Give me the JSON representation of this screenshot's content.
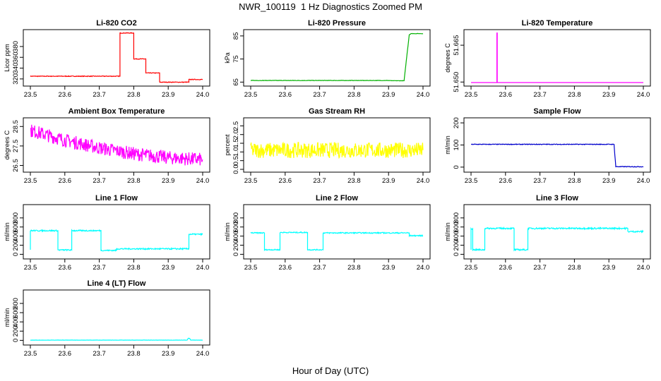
{
  "figure": {
    "title": "NWR_100119  1 Hz Diagnostics Zoomed PM",
    "xlabel": "Hour of Day (UTC)"
  },
  "chart_data": [
    {
      "type": "line",
      "title": "Li-820 CO2",
      "ylabel": "Licor ppm",
      "xlim": [
        23.5,
        24.0
      ],
      "ylim": [
        312,
        406
      ],
      "yticks": [
        "320",
        "340",
        "360",
        "380"
      ],
      "xticks": [
        "23.5",
        "23.6",
        "23.7",
        "23.8",
        "23.9",
        "24.0"
      ],
      "color": "#ff0000",
      "noise": 0.6,
      "series": [
        {
          "name": "",
          "x": [
            23.5,
            23.76,
            23.76,
            23.8,
            23.8,
            23.835,
            23.835,
            23.875,
            23.875,
            23.96,
            23.96,
            24.0
          ],
          "y": [
            325,
            325,
            405,
            405,
            357,
            357,
            331,
            331,
            314,
            314,
            319,
            319
          ]
        }
      ]
    },
    {
      "type": "line",
      "title": "Li-820 Pressure",
      "ylabel": "kPa",
      "xlim": [
        23.5,
        24.0
      ],
      "ylim": [
        64.5,
        86.5
      ],
      "yticks": [
        "65",
        "75",
        "85"
      ],
      "xticks": [
        "23.5",
        "23.6",
        "23.7",
        "23.8",
        "23.9",
        "24.0"
      ],
      "color": "#00b000",
      "noise": 0.08,
      "series": [
        {
          "name": "",
          "x": [
            23.5,
            23.9,
            23.91,
            23.945,
            23.96,
            23.965,
            24.0
          ],
          "y": [
            65.7,
            65.7,
            65.6,
            65.6,
            85.5,
            86.0,
            86.0
          ]
        }
      ]
    },
    {
      "type": "line",
      "title": "Li-820 Temperature",
      "ylabel": "degrees C",
      "xlim": [
        23.5,
        24.0
      ],
      "ylim": [
        51.6495,
        51.6702
      ],
      "yticks": [
        "51.650",
        "51.665"
      ],
      "xticks": [
        "23.5",
        "23.6",
        "23.7",
        "23.8",
        "23.9",
        "24.0"
      ],
      "color": "#ff00ff",
      "noise": 0,
      "series": [
        {
          "name": "",
          "x": [
            23.5,
            23.575,
            23.575,
            23.576,
            23.576,
            24.0
          ],
          "y": [
            51.6498,
            51.6498,
            51.67,
            51.67,
            51.6498,
            51.6498
          ]
        }
      ]
    },
    {
      "type": "line",
      "title": "Ambient Box Temperature",
      "ylabel": "degrees C",
      "xlim": [
        23.5,
        24.0
      ],
      "ylim": [
        26.3,
        28.8
      ],
      "yticks": [
        "26.5",
        "27.5",
        "28.5"
      ],
      "xticks": [
        "23.5",
        "23.6",
        "23.7",
        "23.8",
        "23.9",
        "24.0"
      ],
      "color": "#ff00ff",
      "noise": 0.35,
      "series": [
        {
          "name": "",
          "x": [
            23.5,
            23.6,
            23.7,
            23.8,
            23.9,
            24.0
          ],
          "y": [
            28.3,
            27.8,
            27.4,
            27.1,
            26.9,
            26.8
          ]
        }
      ]
    },
    {
      "type": "line",
      "title": "Gas Stream RH",
      "ylabel": "percent",
      "xlim": [
        23.5,
        24.0
      ],
      "ylim": [
        0,
        2.8
      ],
      "yticks": [
        "0.0",
        "0.5",
        "1.0",
        "1.5",
        "2.0",
        "2.5"
      ],
      "xticks": [
        "23.5",
        "23.6",
        "23.7",
        "23.8",
        "23.9",
        "24.0"
      ],
      "color": "#ffff00",
      "noise": 0.45,
      "series": [
        {
          "name": "",
          "x": [
            23.5,
            24.0
          ],
          "y": [
            1.1,
            1.1
          ]
        }
      ]
    },
    {
      "type": "line",
      "title": "Sample Flow",
      "ylabel": "ml/min",
      "xlim": [
        23.5,
        24.0
      ],
      "ylim": [
        -10,
        210
      ],
      "yticks": [
        "0",
        "100",
        "200"
      ],
      "xticks": [
        "23.5",
        "23.6",
        "23.7",
        "23.8",
        "23.9",
        "24.0"
      ],
      "color": "#0000cc",
      "noise": 1.5,
      "series": [
        {
          "name": "",
          "x": [
            23.5,
            23.915,
            23.92,
            24.0
          ],
          "y": [
            103,
            103,
            2,
            2
          ]
        }
      ]
    },
    {
      "type": "line",
      "title": "Line 1 Flow",
      "ylabel": "ml/min",
      "xlim": [
        23.5,
        24.0
      ],
      "ylim": [
        -40,
        1030
      ],
      "yticks": [
        "0",
        "200",
        "400",
        "600",
        "800"
      ],
      "xticks": [
        "23.5",
        "23.6",
        "23.7",
        "23.8",
        "23.9",
        "24.0"
      ],
      "color": "#00ffff",
      "noise": 14,
      "series": [
        {
          "name": "",
          "x": [
            23.5,
            23.5,
            23.58,
            23.58,
            23.62,
            23.62,
            23.705,
            23.705,
            23.75,
            23.75,
            23.96,
            23.96,
            24.0
          ],
          "y": [
            100,
            520,
            520,
            95,
            95,
            520,
            520,
            85,
            85,
            120,
            120,
            440,
            440
          ]
        }
      ]
    },
    {
      "type": "line",
      "title": "Line 2 Flow",
      "ylabel": "ml/min",
      "xlim": [
        23.5,
        24.0
      ],
      "ylim": [
        -40,
        1030
      ],
      "yticks": [
        "0",
        "200",
        "400",
        "600",
        "800"
      ],
      "xticks": [
        "23.5",
        "23.6",
        "23.7",
        "23.8",
        "23.9",
        "24.0"
      ],
      "color": "#00ffff",
      "noise": 12,
      "series": [
        {
          "name": "",
          "x": [
            23.5,
            23.54,
            23.54,
            23.585,
            23.585,
            23.665,
            23.665,
            23.71,
            23.71,
            23.96,
            23.96,
            24.0
          ],
          "y": [
            470,
            470,
            100,
            100,
            480,
            480,
            100,
            100,
            470,
            470,
            410,
            410
          ]
        }
      ]
    },
    {
      "type": "line",
      "title": "Line 3 Flow",
      "ylabel": "ml/min",
      "xlim": [
        23.5,
        24.0
      ],
      "ylim": [
        -40,
        1030
      ],
      "yticks": [
        "0",
        "200",
        "400",
        "600",
        "800"
      ],
      "xticks": [
        "23.5",
        "23.6",
        "23.7",
        "23.8",
        "23.9",
        "24.0"
      ],
      "color": "#00ffff",
      "noise": 16,
      "series": [
        {
          "name": "",
          "x": [
            23.5,
            23.5,
            23.505,
            23.505,
            23.54,
            23.54,
            23.625,
            23.625,
            23.665,
            23.665,
            23.955,
            23.955,
            24.0
          ],
          "y": [
            100,
            560,
            560,
            100,
            100,
            570,
            570,
            100,
            100,
            570,
            570,
            500,
            500
          ]
        }
      ]
    },
    {
      "type": "line",
      "title": "Line 4 (LT) Flow",
      "ylabel": "ml/min",
      "xlim": [
        23.5,
        24.0
      ],
      "ylim": [
        -40,
        1030
      ],
      "yticks": [
        "0",
        "200",
        "400",
        "600",
        "800"
      ],
      "xticks": [
        "23.5",
        "23.6",
        "23.7",
        "23.8",
        "23.9",
        "24.0"
      ],
      "color": "#00ffff",
      "noise": 2,
      "series": [
        {
          "name": "",
          "x": [
            23.5,
            23.955,
            23.958,
            23.962,
            23.965,
            24.0
          ],
          "y": [
            5,
            5,
            45,
            45,
            5,
            5
          ]
        }
      ]
    }
  ]
}
